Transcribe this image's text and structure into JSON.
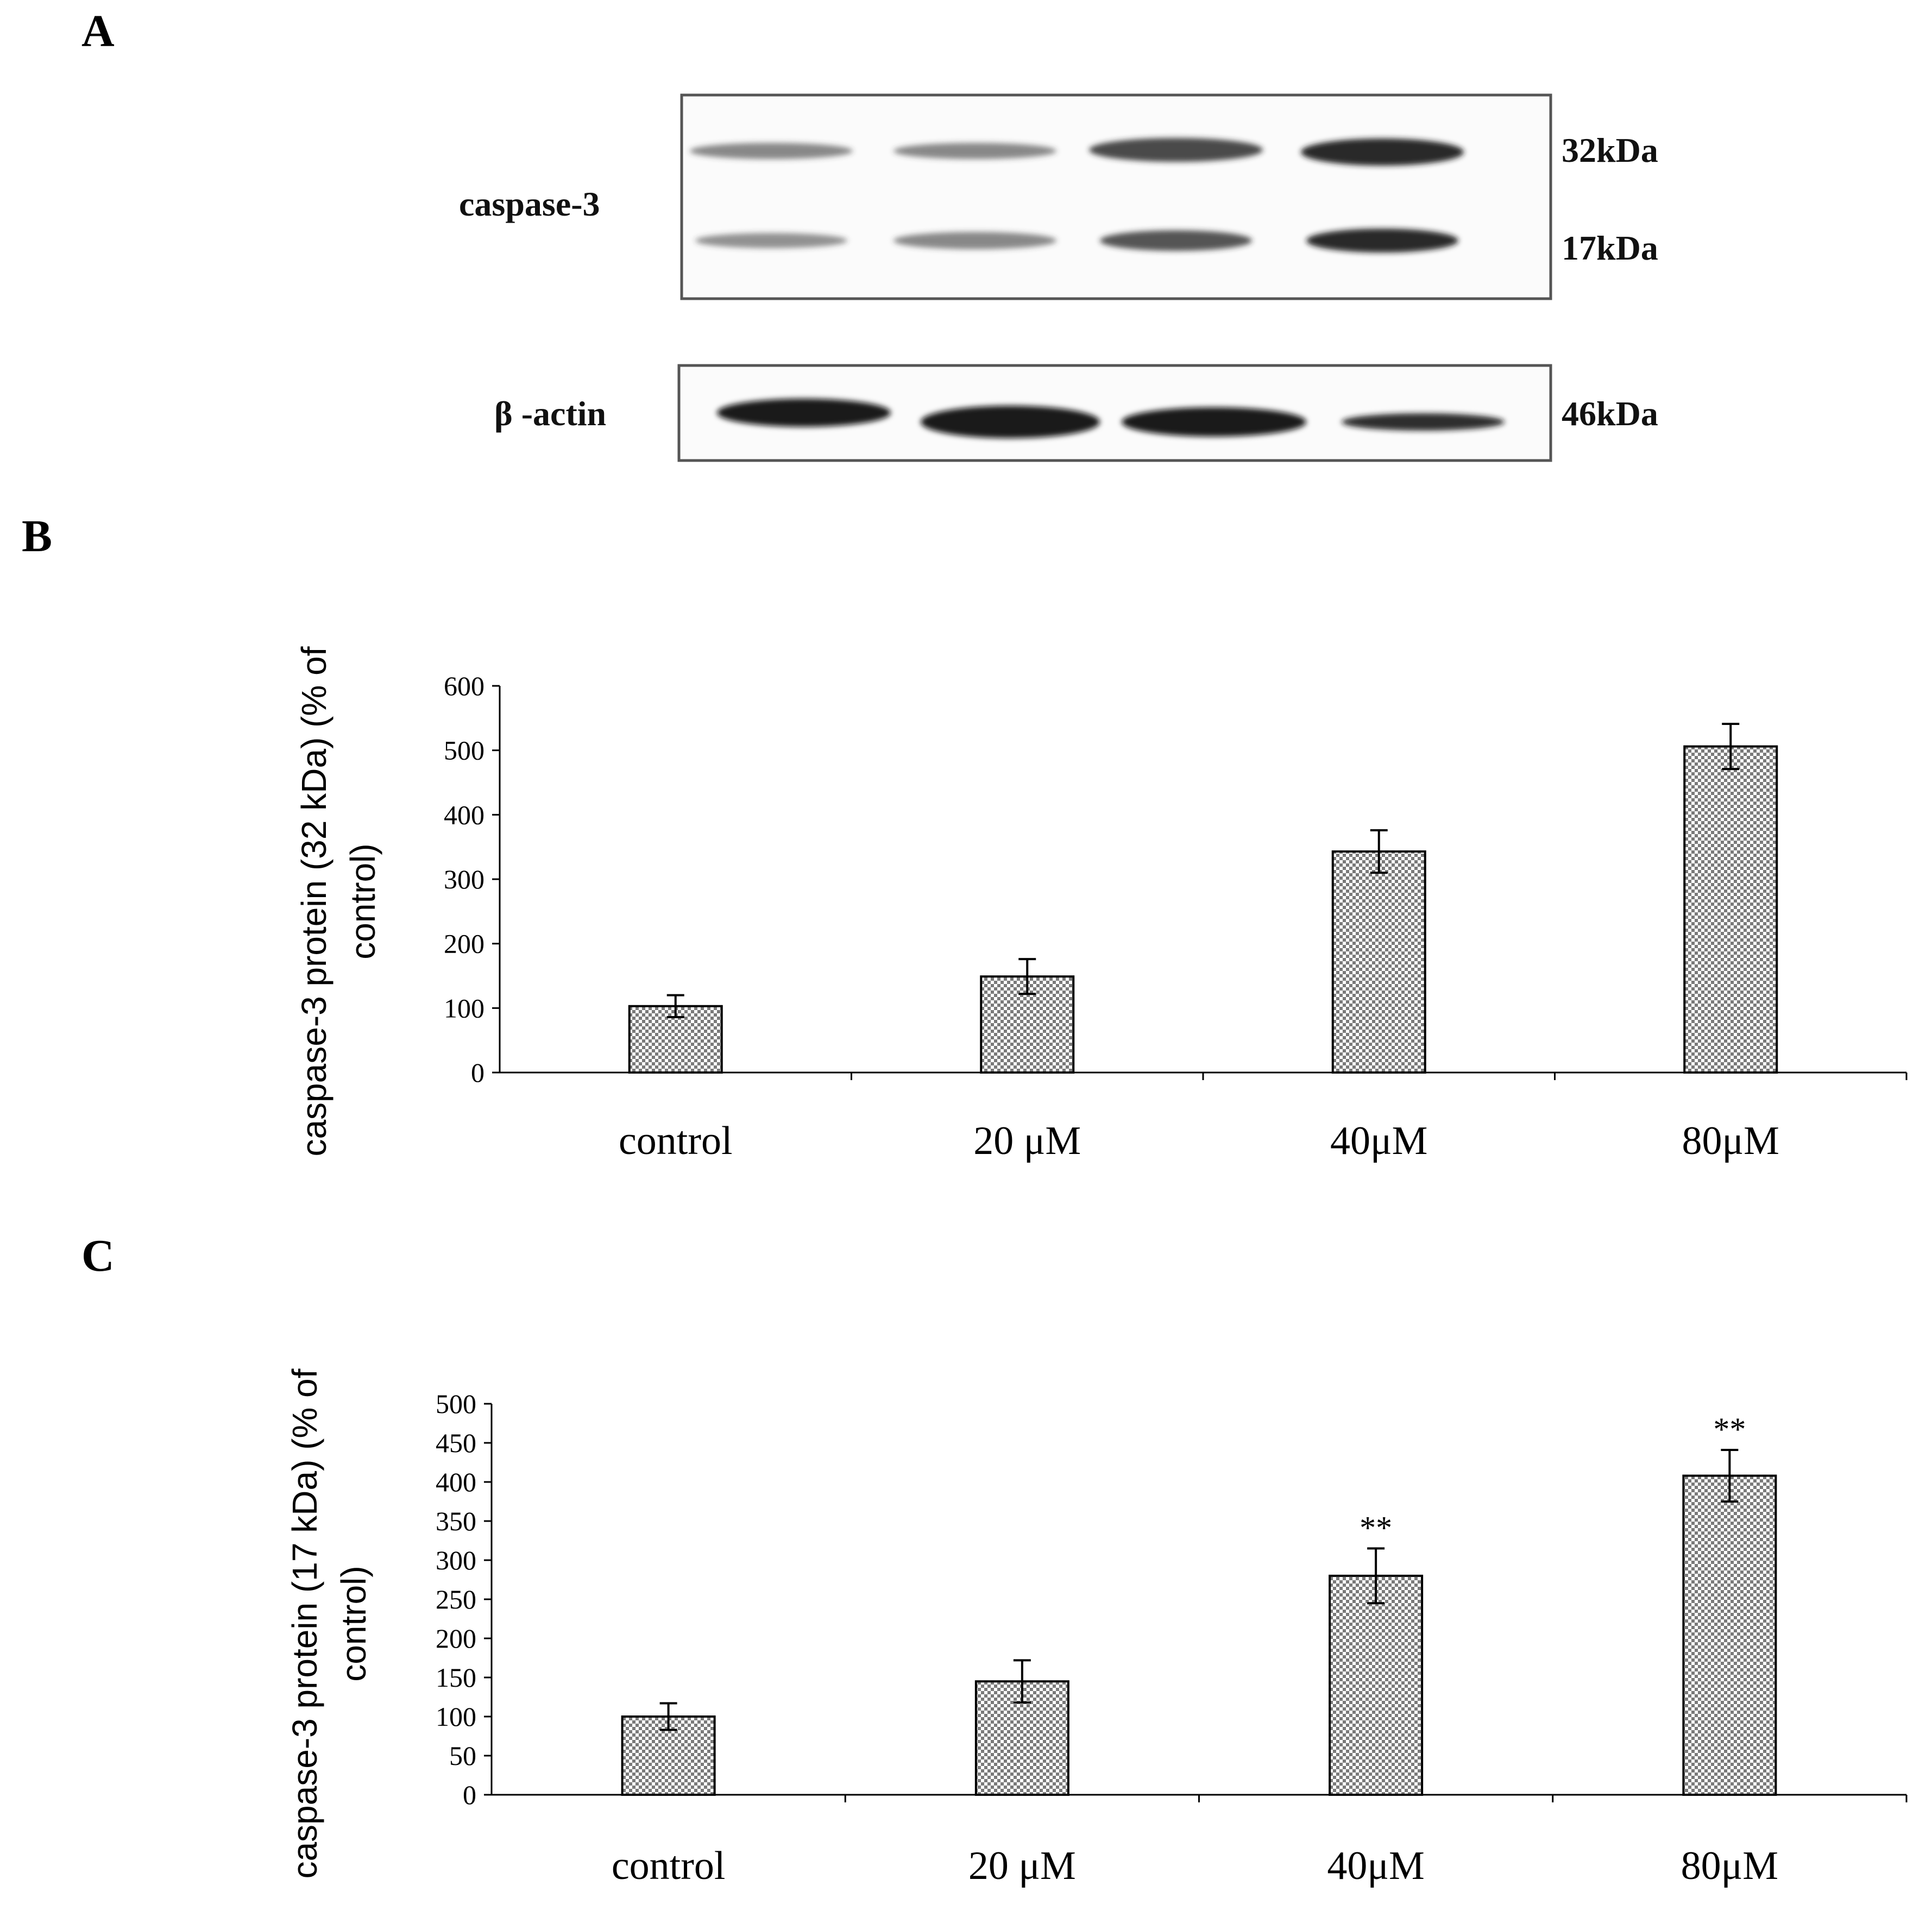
{
  "panels": {
    "a": "A",
    "b": "B",
    "c": "C"
  },
  "blot": {
    "labels": {
      "caspase": "caspase-3",
      "actin": "β -actin"
    },
    "markers": {
      "m32": "32kDa",
      "m17": "17kDa",
      "m46": "46kDa"
    },
    "lanes": 4
  },
  "colors": {
    "bar_pattern": "#8a8a8a",
    "axis": "#000000"
  },
  "chart_data": [
    {
      "type": "bar",
      "panel": "B",
      "categories": [
        "control",
        "20 μM",
        "40μM",
        "80μM"
      ],
      "ylabel_line1": "caspase-3 protein (32 kDa) (% of",
      "ylabel_line2": "control)",
      "values": [
        103,
        149,
        343,
        506
      ],
      "errors": [
        17,
        27,
        33,
        35
      ],
      "annotations": [
        "",
        "",
        "",
        ""
      ],
      "ylim": [
        0,
        600
      ],
      "yticks": [
        "0",
        "100",
        "200",
        "300",
        "400",
        "500",
        "600"
      ],
      "grid": false
    },
    {
      "type": "bar",
      "panel": "C",
      "categories": [
        "control",
        "20 μM",
        "40μM",
        "80μM"
      ],
      "ylabel_line1": "caspase-3 protein (17 kDa) (% of",
      "ylabel_line2": "control)",
      "values": [
        100,
        145,
        280,
        408
      ],
      "errors": [
        17,
        27,
        35,
        33
      ],
      "annotations": [
        "",
        "",
        "**",
        "**"
      ],
      "ylim": [
        0,
        500
      ],
      "yticks": [
        "0",
        "50",
        "100",
        "150",
        "200",
        "250",
        "300",
        "350",
        "400",
        "450",
        "500"
      ],
      "grid": false
    }
  ]
}
